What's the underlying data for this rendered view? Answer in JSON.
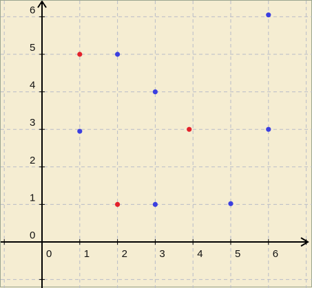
{
  "chart_data": {
    "type": "scatter",
    "title": "",
    "xlabel": "",
    "ylabel": "",
    "xlim": [
      -1,
      7
    ],
    "ylim": [
      -1,
      6.3
    ],
    "grid": true,
    "x_ticks": [
      "0",
      "1",
      "2",
      "3",
      "4",
      "5",
      "6"
    ],
    "y_ticks": [
      "0",
      "1",
      "2",
      "3",
      "4",
      "5",
      "6"
    ],
    "series": [
      {
        "color": "#e3212b",
        "points": [
          [
            1,
            5
          ],
          [
            2,
            1
          ],
          [
            3.9,
            3
          ]
        ]
      },
      {
        "color": "#3b3fe0",
        "points": [
          [
            1,
            2.95
          ],
          [
            2,
            5
          ],
          [
            3,
            4
          ],
          [
            3,
            1
          ],
          [
            5,
            1.02
          ],
          [
            6,
            3
          ],
          [
            6,
            6.05
          ]
        ]
      }
    ],
    "colors": {
      "background": "#f5edd2",
      "grid": "#b8bcc8",
      "axis": "#000000"
    }
  }
}
